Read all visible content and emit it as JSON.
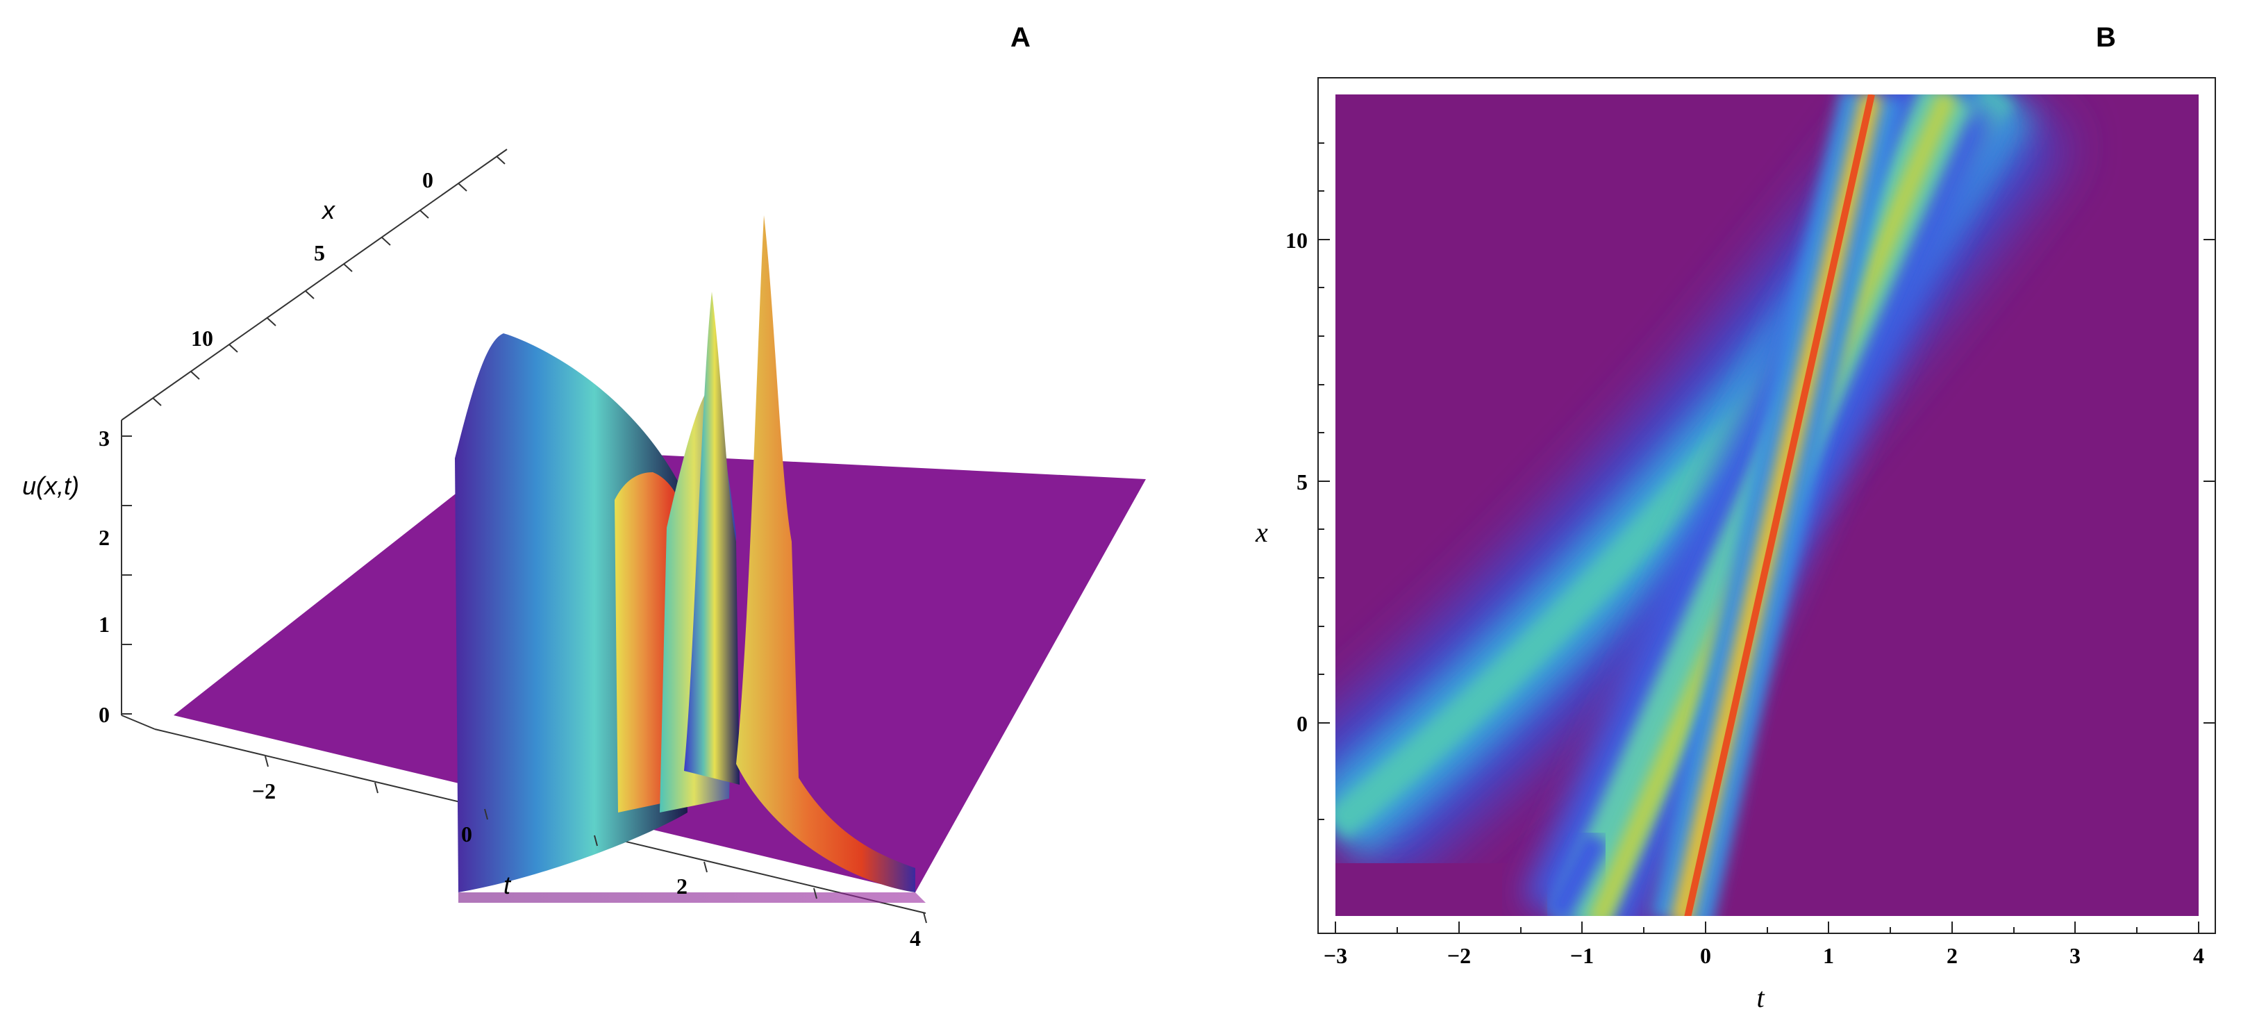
{
  "chart_data": [
    {
      "panel": "A",
      "type": "surface",
      "xlabel": "t",
      "ylabel": "x",
      "zlabel": "u(x,t)",
      "t_ticks": [
        "−2",
        "0",
        "2",
        "4"
      ],
      "x_ticks": [
        "0",
        "5",
        "10"
      ],
      "z_ticks": [
        "0",
        "1",
        "2",
        "3"
      ],
      "t_range": [
        -3,
        4
      ],
      "x_range": [
        -4,
        13
      ],
      "z_range": [
        0,
        3
      ],
      "peaks": [
        {
          "t": -0.2,
          "x": 13,
          "u": 1.45
        },
        {
          "t": 1.3,
          "x": -4,
          "u": 1.6
        },
        {
          "t": 1.7,
          "x": -4,
          "u": 1.2
        },
        {
          "t": 2.1,
          "x": 13,
          "u": 1.45
        },
        {
          "t": 2.5,
          "x": 13,
          "u": 2.6
        }
      ],
      "colormap": [
        "#7a1a8a",
        "#3a3ad0",
        "#4cc2c0",
        "#e8e050",
        "#e04020"
      ]
    },
    {
      "panel": "B",
      "type": "heatmap",
      "xlabel": "t",
      "ylabel": "x",
      "t_ticks": [
        "−3",
        "−2",
        "−1",
        "0",
        "1",
        "2",
        "3",
        "4"
      ],
      "x_ticks": [
        "0",
        "5",
        "10"
      ],
      "t_range": [
        -3,
        4
      ],
      "x_range": [
        -4,
        13
      ],
      "background_color": "#7a1a7e",
      "bands": [
        {
          "kind": "curved-wide",
          "t_at_x_min": -3,
          "t_at_x_max": 2.8,
          "peak_level": "green-cyan"
        },
        {
          "kind": "straight-mid",
          "t_at_x_min": -0.6,
          "t_at_x_max": 1.8,
          "peak_level": "yellow-green"
        },
        {
          "kind": "straight-narrow",
          "t_at_x_min": -0.1,
          "t_at_x_max": 1.3,
          "peak_level": "red"
        }
      ],
      "colormap": [
        "#7a1a7e",
        "#5a2ab8",
        "#3d5ce0",
        "#3aa0e0",
        "#4fc4b8",
        "#a0d060",
        "#e8c030",
        "#e85020"
      ]
    }
  ]
}
